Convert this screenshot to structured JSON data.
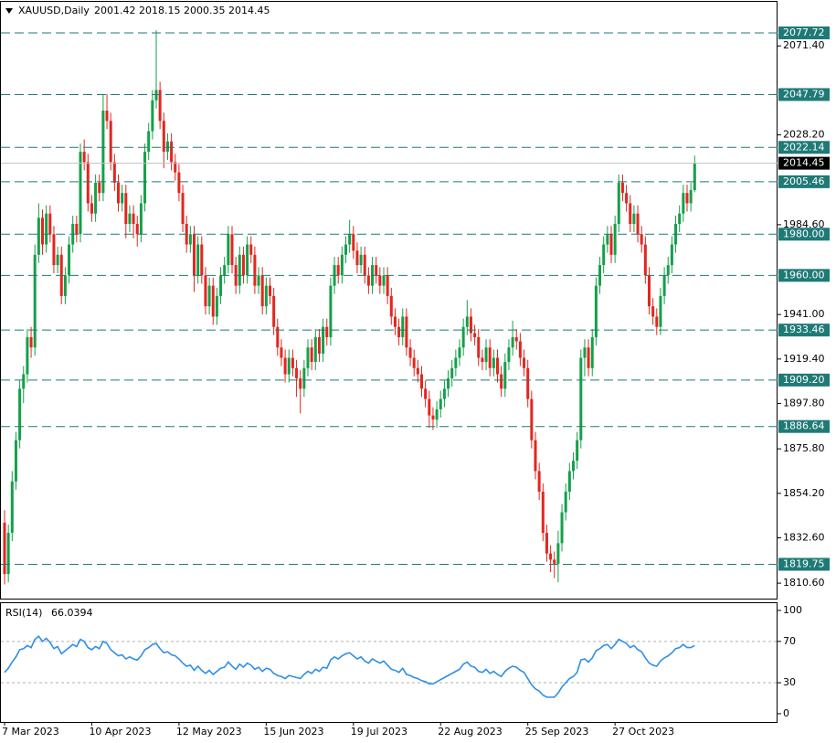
{
  "chart_data": {
    "type": "candlestick",
    "symbol": "XAUUSD,Daily",
    "colors": {
      "up": "#14a04a",
      "down": "#e3261e",
      "level": "#1f7a76",
      "current": "#000000",
      "frame": "#000000"
    },
    "ohlc": [
      [
        1840,
        1846,
        1810,
        1815
      ],
      [
        1815,
        1839,
        1811,
        1835
      ],
      [
        1835,
        1865,
        1831,
        1860
      ],
      [
        1860,
        1884,
        1856,
        1880
      ],
      [
        1880,
        1909,
        1876,
        1905
      ],
      [
        1905,
        1916,
        1898,
        1912
      ],
      [
        1912,
        1934,
        1908,
        1930
      ],
      [
        1930,
        1935,
        1920,
        1925
      ],
      [
        1925,
        1975,
        1921,
        1970
      ],
      [
        1970,
        1995,
        1966,
        1988
      ],
      [
        1988,
        1992,
        1970,
        1975
      ],
      [
        1975,
        1994,
        1971,
        1990
      ],
      [
        1990,
        1994,
        1976,
        1980
      ],
      [
        1980,
        1984,
        1961,
        1965
      ],
      [
        1965,
        1974,
        1961,
        1970
      ],
      [
        1970,
        1974,
        1946,
        1950
      ],
      [
        1950,
        1964,
        1946,
        1960
      ],
      [
        1960,
        1979,
        1956,
        1975
      ],
      [
        1975,
        1989,
        1971,
        1985
      ],
      [
        1985,
        1989,
        1976,
        1980
      ],
      [
        1980,
        2024,
        1976,
        2020
      ],
      [
        2020,
        2026,
        2011,
        2015
      ],
      [
        2015,
        2019,
        1991,
        1995
      ],
      [
        1995,
        1999,
        1986,
        1990
      ],
      [
        1990,
        2009,
        1986,
        2005
      ],
      [
        2005,
        2009,
        1996,
        2000
      ],
      [
        2000,
        2048,
        1996,
        2040
      ],
      [
        2040,
        2048,
        2031,
        2035
      ],
      [
        2035,
        2039,
        2011,
        2015
      ],
      [
        2015,
        2019,
        2001,
        2005
      ],
      [
        2005,
        2009,
        1991,
        1995
      ],
      [
        1995,
        2004,
        1991,
        2000
      ],
      [
        2000,
        2004,
        1978,
        1985
      ],
      [
        1985,
        1994,
        1981,
        1990
      ],
      [
        1990,
        1994,
        1978,
        1985
      ],
      [
        1985,
        1989,
        1974,
        1980
      ],
      [
        1980,
        1999,
        1976,
        1995
      ],
      [
        1995,
        2024,
        1991,
        2020
      ],
      [
        2020,
        2034,
        2016,
        2030
      ],
      [
        2030,
        2050,
        2026,
        2045
      ],
      [
        2045,
        2079,
        2041,
        2050
      ],
      [
        2050,
        2054,
        2031,
        2035
      ],
      [
        2035,
        2039,
        2012,
        2020
      ],
      [
        2020,
        2029,
        2016,
        2025
      ],
      [
        2025,
        2029,
        2011,
        2015
      ],
      [
        2015,
        2019,
        2006,
        2010
      ],
      [
        2010,
        2014,
        1996,
        2000
      ],
      [
        2000,
        2004,
        1981,
        1985
      ],
      [
        1985,
        1989,
        1971,
        1975
      ],
      [
        1975,
        1984,
        1971,
        1980
      ],
      [
        1980,
        1984,
        1952,
        1960
      ],
      [
        1960,
        1979,
        1956,
        1975
      ],
      [
        1975,
        1979,
        1956,
        1960
      ],
      [
        1960,
        1964,
        1941,
        1945
      ],
      [
        1945,
        1959,
        1941,
        1955
      ],
      [
        1955,
        1959,
        1936,
        1940
      ],
      [
        1940,
        1954,
        1936,
        1950
      ],
      [
        1950,
        1964,
        1946,
        1960
      ],
      [
        1960,
        1969,
        1956,
        1965
      ],
      [
        1965,
        1984,
        1961,
        1980
      ],
      [
        1980,
        1984,
        1961,
        1965
      ],
      [
        1965,
        1969,
        1951,
        1955
      ],
      [
        1955,
        1974,
        1951,
        1970
      ],
      [
        1970,
        1974,
        1956,
        1960
      ],
      [
        1960,
        1979,
        1956,
        1975
      ],
      [
        1975,
        1979,
        1966,
        1970
      ],
      [
        1970,
        1974,
        1951,
        1955
      ],
      [
        1955,
        1964,
        1951,
        1960
      ],
      [
        1960,
        1964,
        1941,
        1945
      ],
      [
        1945,
        1959,
        1941,
        1955
      ],
      [
        1955,
        1959,
        1946,
        1950
      ],
      [
        1950,
        1954,
        1931,
        1935
      ],
      [
        1935,
        1939,
        1921,
        1925
      ],
      [
        1925,
        1929,
        1916,
        1920
      ],
      [
        1920,
        1924,
        1908,
        1912
      ],
      [
        1912,
        1924,
        1908,
        1920
      ],
      [
        1920,
        1924,
        1911,
        1915
      ],
      [
        1915,
        1919,
        1901,
        1910
      ],
      [
        1910,
        1914,
        1893,
        1905
      ],
      [
        1905,
        1919,
        1901,
        1915
      ],
      [
        1915,
        1929,
        1911,
        1925
      ],
      [
        1925,
        1929,
        1914,
        1918
      ],
      [
        1918,
        1934,
        1914,
        1930
      ],
      [
        1930,
        1934,
        1918,
        1922
      ],
      [
        1922,
        1939,
        1918,
        1935
      ],
      [
        1935,
        1939,
        1926,
        1930
      ],
      [
        1930,
        1959,
        1926,
        1955
      ],
      [
        1955,
        1969,
        1951,
        1965
      ],
      [
        1965,
        1969,
        1956,
        1960
      ],
      [
        1960,
        1974,
        1956,
        1970
      ],
      [
        1970,
        1979,
        1966,
        1975
      ],
      [
        1975,
        1987,
        1971,
        1980
      ],
      [
        1980,
        1984,
        1968,
        1972
      ],
      [
        1972,
        1976,
        1961,
        1965
      ],
      [
        1965,
        1974,
        1961,
        1970
      ],
      [
        1970,
        1974,
        1956,
        1960
      ],
      [
        1960,
        1964,
        1951,
        1955
      ],
      [
        1955,
        1969,
        1951,
        1965
      ],
      [
        1965,
        1969,
        1956,
        1960
      ],
      [
        1960,
        1964,
        1951,
        1955
      ],
      [
        1955,
        1964,
        1951,
        1960
      ],
      [
        1960,
        1964,
        1946,
        1950
      ],
      [
        1950,
        1954,
        1936,
        1940
      ],
      [
        1940,
        1944,
        1931,
        1935
      ],
      [
        1935,
        1939,
        1926,
        1930
      ],
      [
        1930,
        1944,
        1926,
        1940
      ],
      [
        1940,
        1944,
        1921,
        1925
      ],
      [
        1925,
        1929,
        1916,
        1920
      ],
      [
        1920,
        1924,
        1911,
        1915
      ],
      [
        1915,
        1919,
        1908,
        1912
      ],
      [
        1912,
        1916,
        1901,
        1905
      ],
      [
        1905,
        1909,
        1896,
        1900
      ],
      [
        1900,
        1904,
        1886,
        1892
      ],
      [
        1892,
        1896,
        1885,
        1890
      ],
      [
        1890,
        1899,
        1886,
        1895
      ],
      [
        1895,
        1904,
        1891,
        1900
      ],
      [
        1900,
        1909,
        1896,
        1905
      ],
      [
        1905,
        1914,
        1901,
        1910
      ],
      [
        1910,
        1919,
        1906,
        1915
      ],
      [
        1915,
        1924,
        1911,
        1920
      ],
      [
        1920,
        1929,
        1916,
        1925
      ],
      [
        1925,
        1939,
        1921,
        1935
      ],
      [
        1935,
        1948,
        1931,
        1940
      ],
      [
        1940,
        1944,
        1928,
        1932
      ],
      [
        1932,
        1936,
        1926,
        1930
      ],
      [
        1930,
        1934,
        1916,
        1920
      ],
      [
        1920,
        1924,
        1914,
        1918
      ],
      [
        1918,
        1929,
        1914,
        1925
      ],
      [
        1925,
        1929,
        1911,
        1915
      ],
      [
        1915,
        1924,
        1911,
        1920
      ],
      [
        1920,
        1924,
        1908,
        1912
      ],
      [
        1912,
        1916,
        1901,
        1905
      ],
      [
        1905,
        1922,
        1901,
        1918
      ],
      [
        1918,
        1929,
        1914,
        1925
      ],
      [
        1925,
        1938,
        1921,
        1930
      ],
      [
        1930,
        1934,
        1924,
        1928
      ],
      [
        1928,
        1932,
        1916,
        1920
      ],
      [
        1920,
        1924,
        1911,
        1915
      ],
      [
        1915,
        1919,
        1896,
        1900
      ],
      [
        1900,
        1904,
        1876,
        1880
      ],
      [
        1880,
        1884,
        1861,
        1865
      ],
      [
        1865,
        1869,
        1851,
        1855
      ],
      [
        1855,
        1859,
        1831,
        1835
      ],
      [
        1835,
        1839,
        1821,
        1825
      ],
      [
        1825,
        1829,
        1816,
        1822
      ],
      [
        1822,
        1826,
        1813,
        1820
      ],
      [
        1820,
        1836,
        1811,
        1830
      ],
      [
        1830,
        1849,
        1826,
        1845
      ],
      [
        1845,
        1859,
        1841,
        1855
      ],
      [
        1855,
        1869,
        1851,
        1865
      ],
      [
        1865,
        1874,
        1861,
        1870
      ],
      [
        1870,
        1884,
        1866,
        1880
      ],
      [
        1880,
        1924,
        1876,
        1920
      ],
      [
        1920,
        1929,
        1911,
        1925
      ],
      [
        1925,
        1929,
        1911,
        1915
      ],
      [
        1915,
        1934,
        1911,
        1930
      ],
      [
        1930,
        1959,
        1926,
        1955
      ],
      [
        1955,
        1969,
        1951,
        1965
      ],
      [
        1965,
        1979,
        1961,
        1975
      ],
      [
        1975,
        1984,
        1971,
        1980
      ],
      [
        1980,
        1984,
        1966,
        1970
      ],
      [
        1970,
        1989,
        1966,
        1985
      ],
      [
        1985,
        2009,
        1981,
        2005
      ],
      [
        2005,
        2009,
        1996,
        2000
      ],
      [
        2000,
        2004,
        1991,
        1995
      ],
      [
        1995,
        1999,
        1981,
        1985
      ],
      [
        1985,
        1994,
        1981,
        1990
      ],
      [
        1990,
        1994,
        1976,
        1980
      ],
      [
        1980,
        1984,
        1971,
        1975
      ],
      [
        1975,
        1979,
        1956,
        1960
      ],
      [
        1960,
        1964,
        1941,
        1945
      ],
      [
        1945,
        1949,
        1936,
        1940
      ],
      [
        1940,
        1944,
        1931,
        1935
      ],
      [
        1935,
        1954,
        1931,
        1950
      ],
      [
        1950,
        1964,
        1946,
        1960
      ],
      [
        1960,
        1969,
        1956,
        1965
      ],
      [
        1965,
        1979,
        1961,
        1975
      ],
      [
        1975,
        1989,
        1971,
        1985
      ],
      [
        1985,
        1994,
        1981,
        1990
      ],
      [
        1990,
        2004,
        1986,
        2000
      ],
      [
        2000,
        2004,
        1991,
        1995
      ],
      [
        1995,
        2005,
        1991,
        2001.42
      ],
      [
        2001.42,
        2018.15,
        2000.35,
        2014.45
      ]
    ],
    "categories": [
      "7 Mar 2023",
      null,
      null,
      null,
      null,
      null,
      null,
      null,
      null,
      null,
      null,
      null,
      null,
      null,
      null,
      null,
      null,
      null,
      null,
      null,
      null,
      null,
      null,
      "10 Apr 2023",
      null,
      null,
      null,
      null,
      null,
      null,
      null,
      null,
      null,
      null,
      null,
      null,
      null,
      null,
      null,
      null,
      null,
      null,
      null,
      null,
      null,
      null,
      "12 May 2023",
      null,
      null,
      null,
      null,
      null,
      null,
      null,
      null,
      null,
      null,
      null,
      null,
      null,
      null,
      null,
      null,
      null,
      null,
      null,
      null,
      null,
      null,
      "15 Jun 2023",
      null,
      null,
      null,
      null,
      null,
      null,
      null,
      null,
      null,
      null,
      null,
      null,
      null,
      null,
      null,
      null,
      null,
      null,
      null,
      null,
      null,
      null,
      "19 Jul 2023",
      null,
      null,
      null,
      null,
      null,
      null,
      null,
      null,
      null,
      null,
      null,
      null,
      null,
      null,
      null,
      null,
      null,
      null,
      null,
      null,
      null,
      null,
      "22 Aug 2023",
      null,
      null,
      null,
      null,
      null,
      null,
      null,
      null,
      null,
      null,
      null,
      null,
      null,
      null,
      null,
      null,
      null,
      null,
      null,
      null,
      null,
      null,
      "25 Sep 2023",
      null,
      null,
      null,
      null,
      null,
      null,
      null,
      null,
      null,
      null,
      null,
      null,
      null,
      null,
      null,
      null,
      null,
      null,
      null,
      null,
      null,
      null,
      "27 Oct 2023",
      null,
      null,
      null,
      null,
      null,
      null,
      null,
      null,
      null,
      null,
      null,
      null,
      null,
      null,
      null,
      null,
      null,
      null,
      null,
      null,
      null
    ],
    "ylim": [
      1803.1,
      2092.8
    ],
    "yticks": [
      {
        "value": 2071.4,
        "label": "2071.40"
      },
      {
        "value": 2028.2,
        "label": "2028.20"
      },
      {
        "value": 1984.6,
        "label": "1984.60"
      },
      {
        "value": 1941,
        "label": "1941.00"
      },
      {
        "value": 1919.4,
        "label": "1919.40"
      },
      {
        "value": 1897.8,
        "label": "1897.80"
      },
      {
        "value": 1875.8,
        "label": "1875.80"
      },
      {
        "value": 1854.2,
        "label": "1854.20"
      },
      {
        "value": 1832.6,
        "label": "1832.60"
      },
      {
        "value": 1810.6,
        "label": "1810.60"
      }
    ],
    "levels": [
      2077.72,
      2047.79,
      2022.14,
      2005.46,
      {
        "value": 1980,
        "label": "1980.00"
      },
      {
        "value": 1960,
        "label": "1960.00"
      },
      1933.46,
      {
        "value": 1909.2,
        "label": "1909.20"
      },
      1886.64,
      1819.75
    ],
    "rsi": {
      "title": "RSI(14)",
      "color": "#2f8fe6",
      "ylim": [
        -8,
        107
      ],
      "yticks": [
        100,
        70,
        30,
        0
      ],
      "levels": [
        70,
        30
      ],
      "values": [
        40,
        44,
        50,
        55,
        62,
        63,
        66,
        64,
        72,
        75,
        70,
        73,
        69,
        63,
        65,
        58,
        61,
        64,
        67,
        65,
        72,
        70,
        64,
        62,
        65,
        63,
        70,
        68,
        62,
        59,
        56,
        57,
        53,
        55,
        53,
        52,
        56,
        62,
        64,
        67,
        68,
        63,
        59,
        60,
        57,
        56,
        53,
        49,
        46,
        47,
        42,
        46,
        42,
        39,
        42,
        38,
        41,
        44,
        45,
        50,
        46,
        43,
        48,
        45,
        49,
        47,
        43,
        45,
        41,
        44,
        43,
        39,
        37,
        36,
        34,
        37,
        36,
        35,
        34,
        38,
        41,
        39,
        43,
        41,
        45,
        44,
        52,
        55,
        53,
        56,
        58,
        59,
        56,
        53,
        55,
        51,
        49,
        53,
        51,
        49,
        51,
        47,
        43,
        42,
        40,
        44,
        38,
        37,
        35,
        34,
        32,
        31,
        29,
        29,
        31,
        33,
        35,
        37,
        39,
        41,
        43,
        48,
        50,
        46,
        45,
        41,
        40,
        43,
        39,
        41,
        38,
        36,
        41,
        44,
        46,
        45,
        42,
        40,
        34,
        28,
        24,
        22,
        18,
        16,
        16,
        16,
        20,
        26,
        30,
        34,
        36,
        40,
        52,
        53,
        50,
        54,
        61,
        63,
        66,
        67,
        63,
        67,
        72,
        70,
        68,
        64,
        66,
        62,
        60,
        54,
        49,
        47,
        46,
        51,
        54,
        56,
        59,
        63,
        64,
        67,
        64,
        64,
        66.0394
      ]
    }
  }
}
